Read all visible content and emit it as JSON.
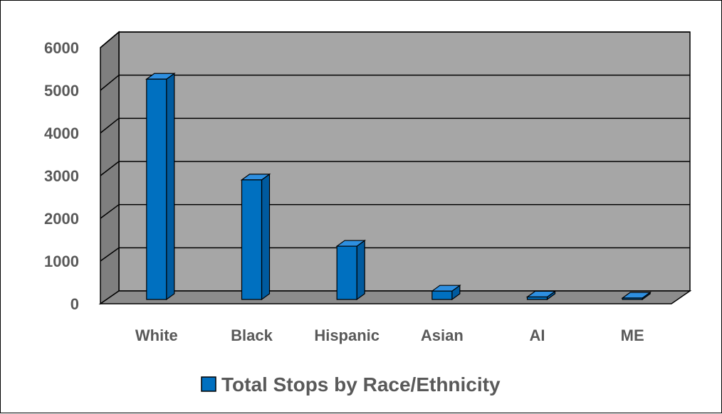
{
  "chart_data": {
    "type": "bar",
    "categories": [
      "White",
      "Black",
      "Hispanic",
      "Asian",
      "AI",
      "ME"
    ],
    "series": [
      {
        "name": "Total Stops by Race/Ethnicity",
        "values": [
          5250,
          2850,
          1270,
          200,
          60,
          10
        ]
      }
    ],
    "title": "",
    "xlabel": "",
    "ylabel": "",
    "ylim": [
      0,
      6000
    ],
    "yticks": [
      0,
      1000,
      2000,
      3000,
      4000,
      5000,
      6000
    ],
    "grid": true,
    "legend": "bottom",
    "colors": {
      "bar_front": "#0070c0",
      "bar_side": "#005a9e",
      "bar_top": "#2e8fe0",
      "back_wall": "#a6a6a6",
      "side_wall": "#7f7f7f",
      "floor": "#8c8c8c",
      "gridline": "#000000"
    }
  }
}
